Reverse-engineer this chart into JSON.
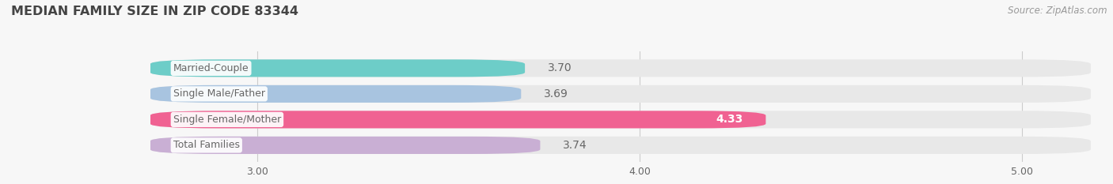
{
  "title": "MEDIAN FAMILY SIZE IN ZIP CODE 83344",
  "source": "Source: ZipAtlas.com",
  "categories": [
    "Married-Couple",
    "Single Male/Father",
    "Single Female/Mother",
    "Total Families"
  ],
  "values": [
    3.7,
    3.69,
    4.33,
    3.74
  ],
  "bar_colors": [
    "#6dcdc8",
    "#a8c4e0",
    "#f06292",
    "#c9afd4"
  ],
  "background_color": "#f7f7f7",
  "bar_bg_color": "#e8e8e8",
  "xlim_left": 2.72,
  "xlim_right": 5.18,
  "xticks": [
    3.0,
    4.0,
    5.0
  ],
  "xtick_labels": [
    "3.00",
    "4.00",
    "5.00"
  ],
  "label_color": "#666666",
  "value_color_inside": "#ffffff",
  "value_color_outside": "#666666",
  "title_color": "#444444",
  "source_color": "#999999",
  "bar_height": 0.68,
  "bar_gap": 0.18,
  "label_fontsize": 9.0,
  "value_fontsize": 10.0,
  "title_fontsize": 11.5,
  "source_fontsize": 8.5
}
